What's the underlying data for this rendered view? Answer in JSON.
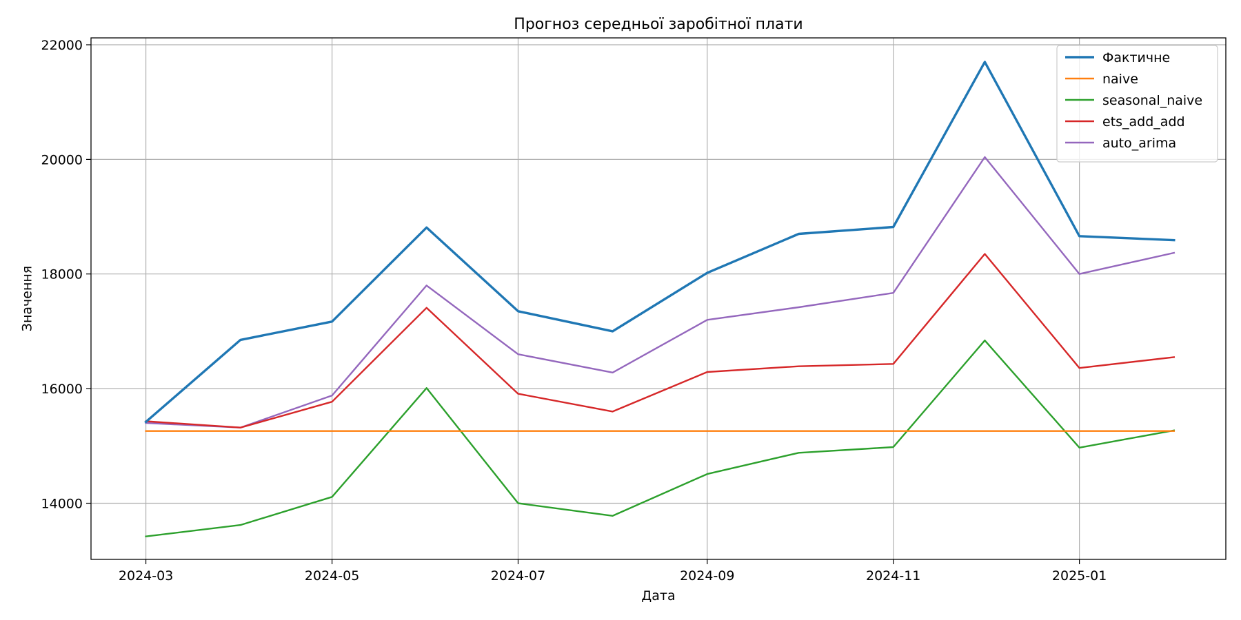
{
  "chart_data": {
    "type": "line",
    "title": "Прогноз середньої заробітної плати",
    "xlabel": "Дата",
    "ylabel": "Значення",
    "x": [
      "2024-03",
      "2024-04",
      "2024-05",
      "2024-06",
      "2024-07",
      "2024-08",
      "2024-09",
      "2024-10",
      "2024-11",
      "2024-12",
      "2025-01",
      "2025-02"
    ],
    "x_ticks": [
      "2024-03",
      "2024-05",
      "2024-07",
      "2024-09",
      "2024-11",
      "2025-01"
    ],
    "y_ticks": [
      14000,
      16000,
      18000,
      20000,
      22000
    ],
    "xlim": [
      "2024-02-12",
      "2025-02-18"
    ],
    "ylim": [
      13020,
      22120
    ],
    "grid": true,
    "legend_position": "top-right",
    "series": [
      {
        "name": "Фактичне",
        "color": "#1f77b4",
        "emphasis": true,
        "values": [
          15420,
          16850,
          17170,
          18810,
          17350,
          17000,
          18020,
          18700,
          18820,
          21700,
          18660,
          18590
        ]
      },
      {
        "name": "naive",
        "color": "#ff7f0e",
        "values": [
          15260,
          15260,
          15260,
          15260,
          15260,
          15260,
          15260,
          15260,
          15260,
          15260,
          15260,
          15260
        ]
      },
      {
        "name": "seasonal_naive",
        "color": "#2ca02c",
        "values": [
          13420,
          13620,
          14110,
          16010,
          14000,
          13780,
          14510,
          14880,
          14980,
          16840,
          14970,
          15270
        ]
      },
      {
        "name": "ets_add_add",
        "color": "#d62728",
        "values": [
          15430,
          15320,
          15770,
          17410,
          15910,
          15600,
          16290,
          16390,
          16430,
          18350,
          16360,
          16550
        ]
      },
      {
        "name": "auto_arima",
        "color": "#9467bd",
        "values": [
          15400,
          15320,
          15880,
          17800,
          16600,
          16280,
          17200,
          17420,
          17670,
          20040,
          18000,
          18370
        ]
      }
    ]
  }
}
